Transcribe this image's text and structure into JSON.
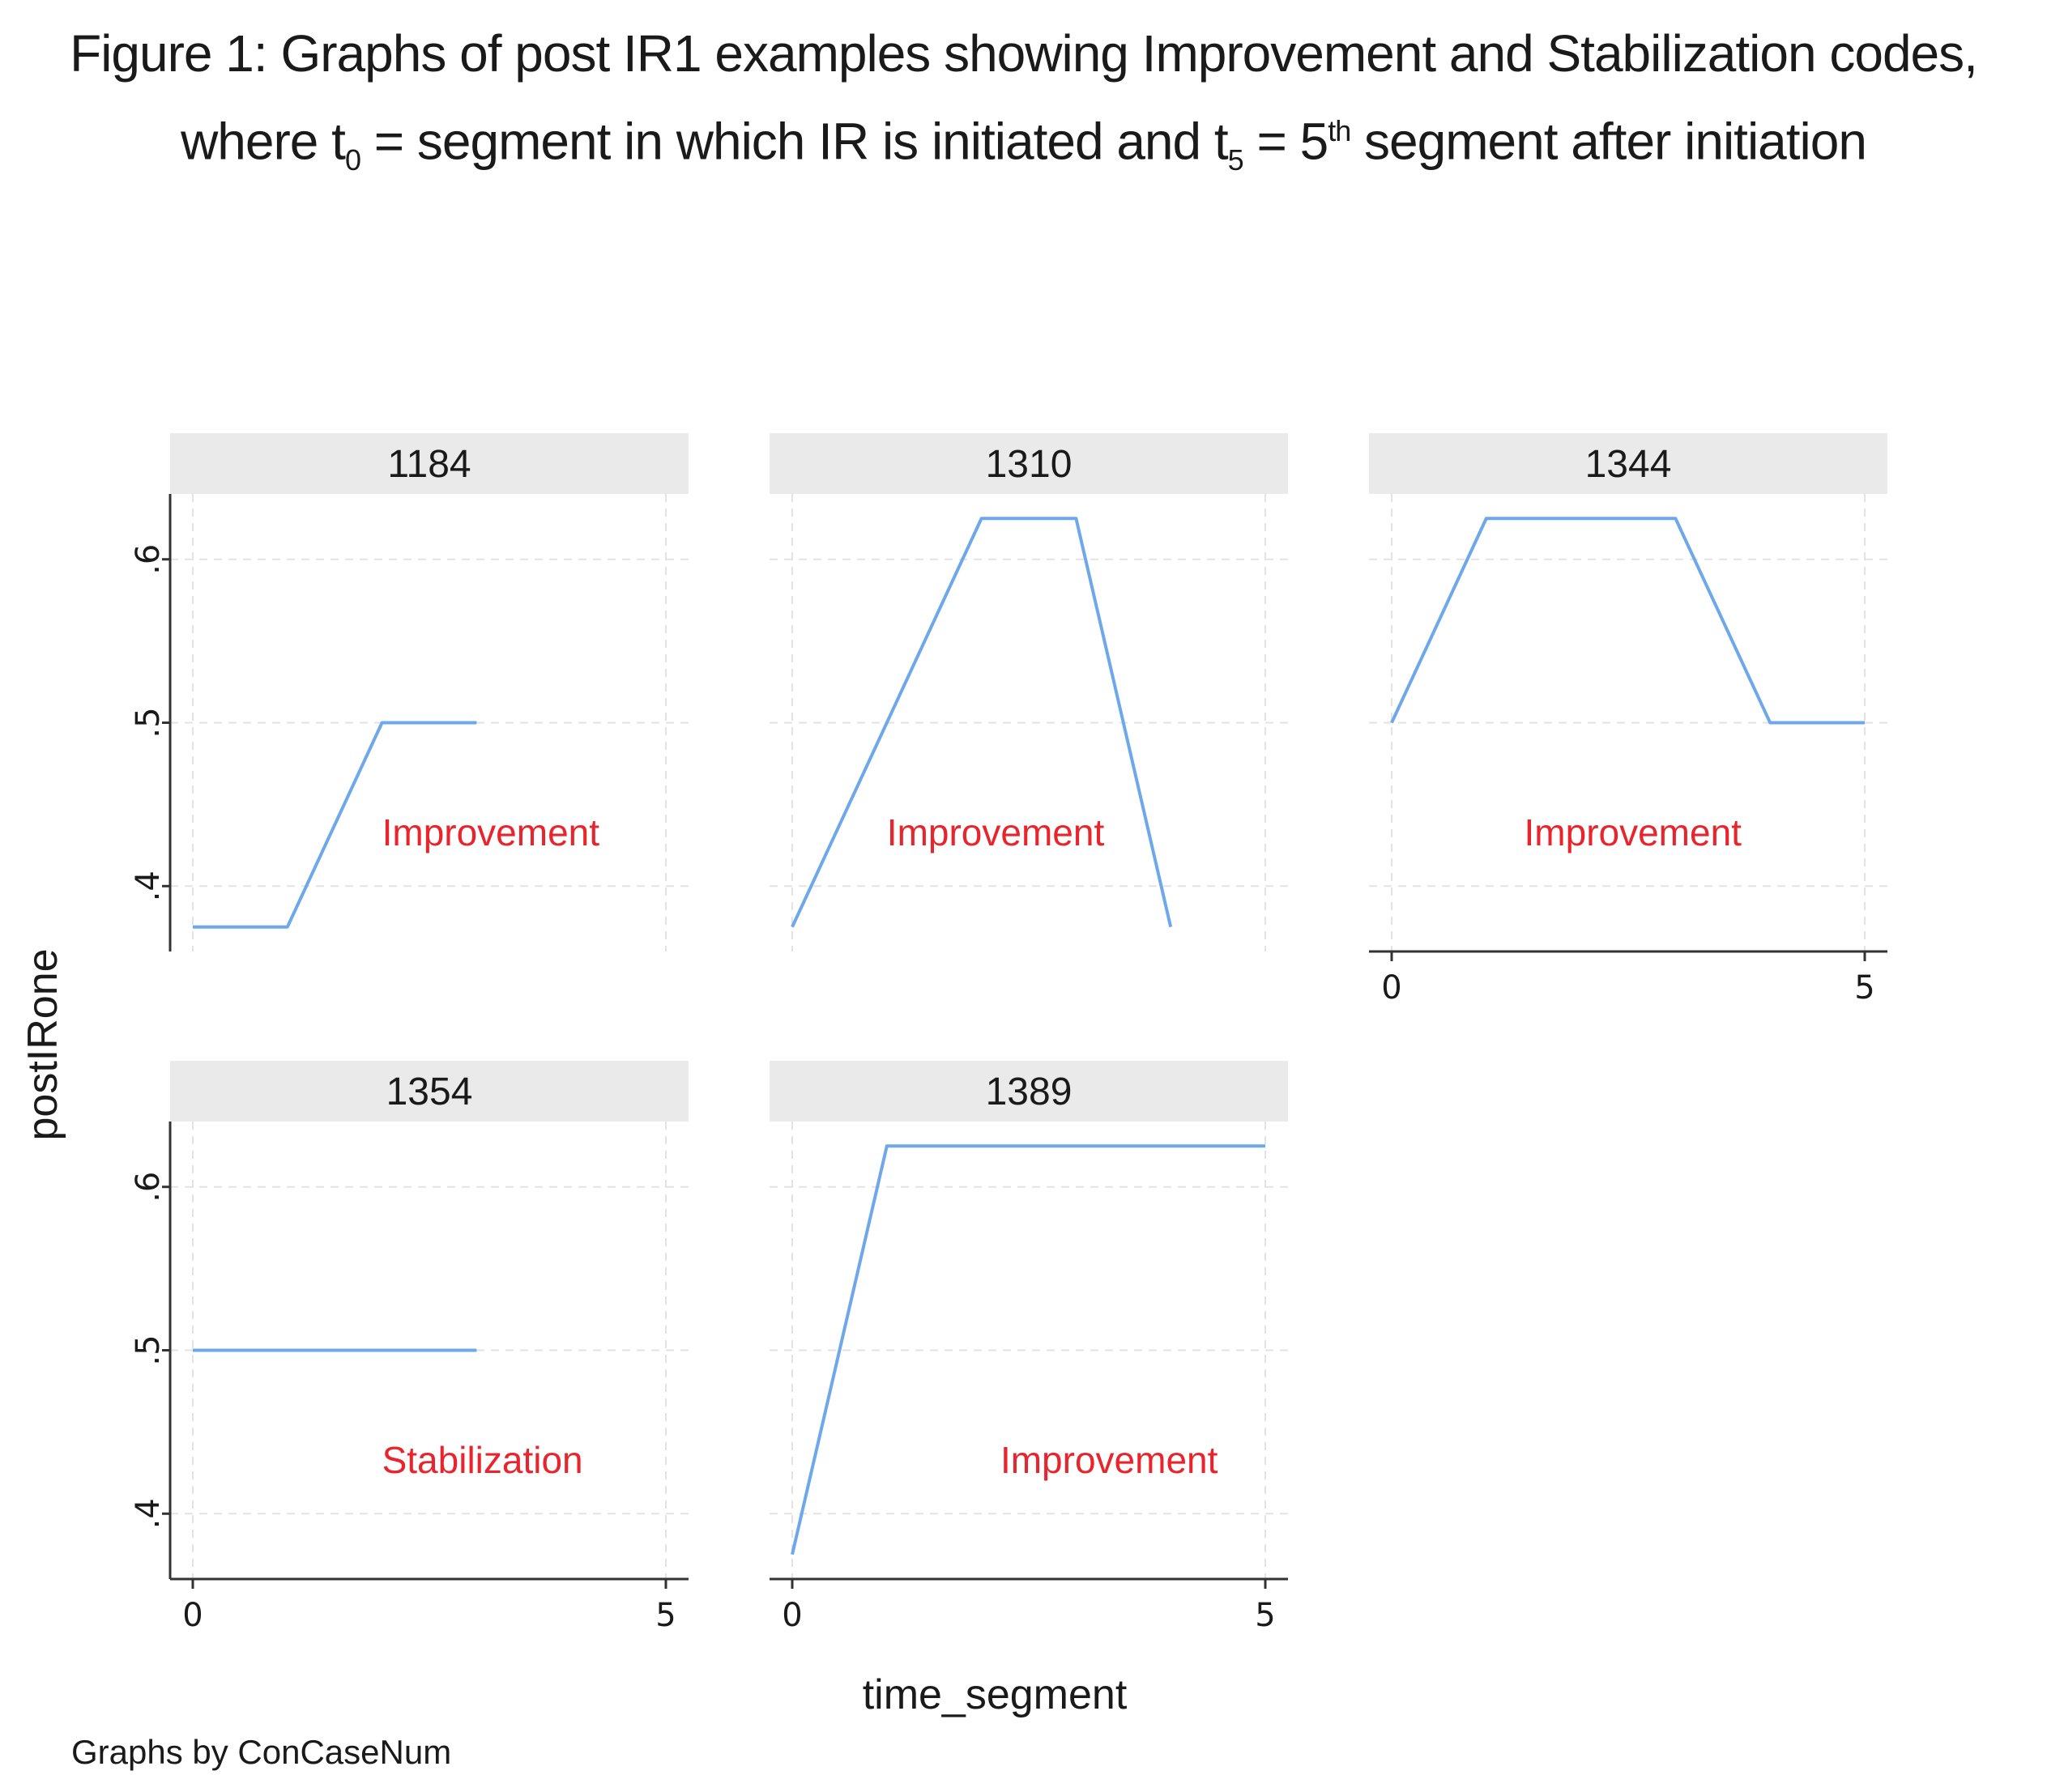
{
  "title": {
    "line1": "Figure 1:  Graphs of post IR1 examples showing Improvement and Stabilization codes,",
    "line2_where": "where t",
    "line2_sub0": "0",
    "line2_mid": " = segment in which IR is initiated and t",
    "line2_sub5": "5",
    "line2_eq": " = 5",
    "line2_sup": "th",
    "line2_end": " segment after initiation"
  },
  "chart_data": {
    "type": "line",
    "xlabel": "time_segment",
    "ylabel": "postIRone",
    "note": "Graphs by ConCaseNum",
    "line_color": "#6fa8ea",
    "annotation_color": "#e8242c",
    "xlim": [
      0,
      5
    ],
    "ylim": [
      0.36,
      0.64
    ],
    "xticks": [
      0,
      5
    ],
    "xtick_labels": [
      "0",
      "5"
    ],
    "yticks": [
      0.4,
      0.5,
      0.6
    ],
    "ytick_labels": [
      ".4",
      ".5",
      ".6"
    ],
    "panels": [
      {
        "id": "1184",
        "x": [
          0,
          1,
          2,
          3
        ],
        "y": [
          0.375,
          0.375,
          0.5,
          0.5
        ],
        "annotation": "Improvement",
        "annotation_pos": [
          2,
          0.425
        ]
      },
      {
        "id": "1310",
        "x": [
          0,
          2,
          3,
          4
        ],
        "y": [
          0.375,
          0.625,
          0.625,
          0.375
        ],
        "annotation": "Improvement",
        "annotation_pos": [
          1,
          0.425
        ]
      },
      {
        "id": "1344",
        "x": [
          0,
          1,
          3,
          4,
          5
        ],
        "y": [
          0.5,
          0.625,
          0.625,
          0.5,
          0.5
        ],
        "annotation": "Improvement",
        "annotation_pos": [
          1.4,
          0.425
        ]
      },
      {
        "id": "1354",
        "x": [
          0,
          3
        ],
        "y": [
          0.5,
          0.5
        ],
        "annotation": "Stabilization",
        "annotation_pos": [
          2,
          0.425
        ]
      },
      {
        "id": "1389",
        "x": [
          0,
          1,
          5
        ],
        "y": [
          0.375,
          0.625,
          0.625
        ],
        "annotation": "Improvement",
        "annotation_pos": [
          2.2,
          0.425
        ]
      }
    ]
  }
}
